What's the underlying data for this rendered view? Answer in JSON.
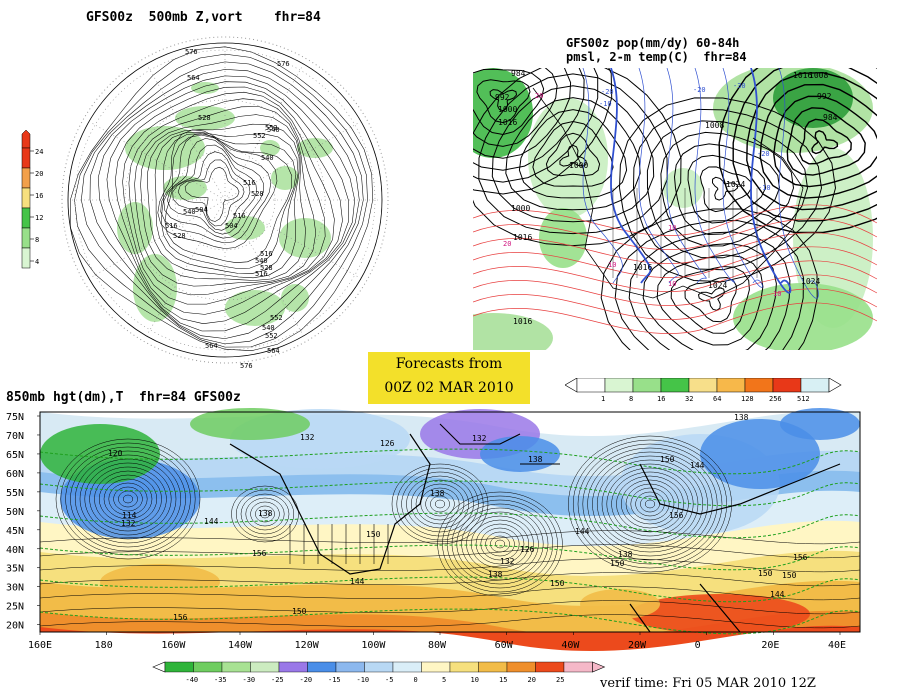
{
  "panels": {
    "polar": {
      "title": "GFS00z  500mb Z,vort    fhr=84",
      "colorbar_ticks": [
        "24",
        "20",
        "16",
        "12",
        "8",
        "4"
      ],
      "contour_labels": [
        "576",
        "576",
        "564",
        "552",
        "540",
        "528",
        "552",
        "540",
        "516",
        "528",
        "516",
        "504",
        "540",
        "504",
        "516",
        "528",
        "516",
        "540",
        "528",
        "516",
        "552",
        "540",
        "552",
        "564",
        "576",
        "564"
      ]
    },
    "regional": {
      "title_line1": "GFS00z pop(mm/dy) 60-84h",
      "title_line2": "pmsl, 2-m temp(C)  fhr=84",
      "colorbar_ticks": [
        "1",
        "8",
        "16",
        "32",
        "64",
        "128",
        "256",
        "512"
      ],
      "pressure_labels": [
        "984",
        "992",
        "1000",
        "1016",
        "1000",
        "1000",
        "1016",
        "1008",
        "1016",
        "1024",
        "1024",
        "1016",
        "1008",
        "992",
        "984",
        "1016",
        "1024"
      ],
      "temp_labels": [
        "-20",
        "-10",
        "-20",
        "-30",
        "-20",
        "-10",
        "10",
        "10",
        "10",
        "10",
        "20",
        "20"
      ]
    },
    "global": {
      "title": "850mb hgt(dm),T  fhr=84 GFS00z",
      "lat_labels": [
        "75N",
        "70N",
        "65N",
        "60N",
        "55N",
        "50N",
        "45N",
        "40N",
        "35N",
        "30N",
        "25N",
        "20N"
      ],
      "lon_labels": [
        "160E",
        "180",
        "160W",
        "140W",
        "120W",
        "100W",
        "80W",
        "60W",
        "40W",
        "20W",
        "0",
        "20E",
        "40E"
      ],
      "colorbar_ticks": [
        "-40",
        "-35",
        "-30",
        "-25",
        "-20",
        "-15",
        "-10",
        "-5",
        "0",
        "5",
        "10",
        "15",
        "20",
        "25"
      ],
      "height_labels": [
        "120",
        "132",
        "126",
        "132",
        "138",
        "138",
        "150",
        "144",
        "114",
        "132",
        "144",
        "138",
        "156",
        "150",
        "138",
        "126",
        "132",
        "138",
        "150",
        "144",
        "150",
        "156",
        "138",
        "156",
        "144",
        "150",
        "144",
        "150",
        "156",
        "150"
      ]
    }
  },
  "forecast_box": {
    "line1": "Forecasts from",
    "line2": "00Z 02 MAR 2010"
  },
  "verif_time": "verif time: Fri 05 MAR 2010 12Z",
  "colors": {
    "pop": [
      "#ffffff",
      "#d9f5d2",
      "#98e08a",
      "#45c448",
      "#f7df8a",
      "#f7b84a",
      "#f2751a",
      "#e83818",
      "#d8f0f4"
    ],
    "temp": [
      "#2fb43a",
      "#6fcd60",
      "#a8e293",
      "#ccecc0",
      "#9a78e8",
      "#4a8ee8",
      "#8cb8ee",
      "#b8d8f4",
      "#daeef8",
      "#fff6c4",
      "#f6e07e",
      "#f2bc48",
      "#ef8f2c",
      "#ec4a1c",
      "#f5b8c8"
    ],
    "vort_bar": [
      "#e83818",
      "#f2a04a",
      "#f7e07e",
      "#45c448",
      "#98e08a",
      "#d9f5d2"
    ]
  }
}
